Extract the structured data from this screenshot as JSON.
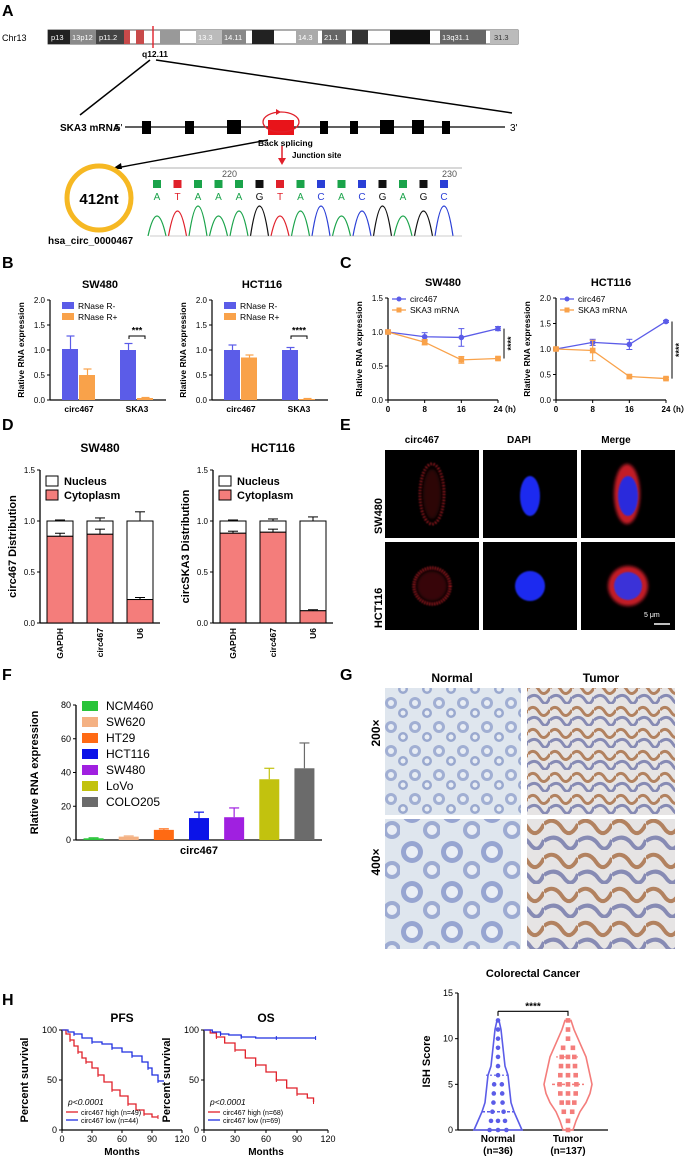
{
  "panels": {
    "A": "A",
    "B": "B",
    "C": "C",
    "D": "D",
    "E": "E",
    "F": "F",
    "G": "G",
    "H": "H"
  },
  "A": {
    "chr": "Chr13",
    "bands": [
      "p13",
      "13p12",
      "p11.2",
      "13.3",
      "14.11",
      "14.3",
      "21.1",
      "13q31.1",
      "31.3"
    ],
    "locus": "q12.11",
    "mrna_label": "SKA3 mRNA",
    "five": "5'",
    "three": "3'",
    "back_splicing": "Back splicing",
    "junction": "Junction site",
    "circle_size": "412nt",
    "circ_name": "hsa_circ_0000467",
    "seq": [
      "A",
      "T",
      "A",
      "A",
      "A",
      "G",
      "T",
      "A",
      "C",
      "A",
      "C",
      "G",
      "A",
      "G",
      "C"
    ],
    "seq_colors": {
      "A": "#1aa34a",
      "T": "#e0202a",
      "G": "#111111",
      "C": "#2a3fd6"
    },
    "pos1": "220",
    "pos2": "230"
  },
  "B": {
    "ylabel": "Rlative RNA expression",
    "legend": [
      "RNase R-",
      "RNase R+"
    ],
    "colors": [
      "#5b5ce8",
      "#f9a24a"
    ],
    "charts": [
      {
        "title": "SW480",
        "sig": "***",
        "categories": [
          "circ467",
          "SKA3"
        ],
        "series": [
          {
            "name": "RNase R-",
            "values": [
              1.02,
              1.0
            ],
            "err": [
              0.26,
              0.13
            ]
          },
          {
            "name": "RNase R+",
            "values": [
              0.5,
              0.04
            ],
            "err": [
              0.12,
              0.01
            ]
          }
        ],
        "ylim": [
          0,
          2.0
        ],
        "yticks": [
          "0.0",
          "0.5",
          "1.0",
          "1.5",
          "2.0"
        ]
      },
      {
        "title": "HCT116",
        "sig": "****",
        "categories": [
          "circ467",
          "SKA3"
        ],
        "series": [
          {
            "name": "RNase R-",
            "values": [
              1.0,
              1.0
            ],
            "err": [
              0.1,
              0.05
            ]
          },
          {
            "name": "RNase R+",
            "values": [
              0.85,
              0.02
            ],
            "err": [
              0.05,
              0.01
            ]
          }
        ],
        "ylim": [
          0,
          2.0
        ],
        "yticks": [
          "0.0",
          "0.5",
          "1.0",
          "1.5",
          "2.0"
        ]
      }
    ]
  },
  "C": {
    "ylabel": "Rlative RNA expression",
    "legend": [
      "circ467",
      "SKA3 mRNA"
    ],
    "colors": [
      "#5b5ce8",
      "#f9a24a"
    ],
    "x": [
      0,
      8,
      16,
      24
    ],
    "xticks": [
      "0",
      "8",
      "16",
      "24"
    ],
    "xunit": "（h）",
    "charts": [
      {
        "title": "SW480",
        "sig": "****",
        "series": [
          {
            "name": "circ467",
            "values": [
              1.0,
              0.93,
              0.92,
              1.05
            ],
            "err": [
              0.03,
              0.06,
              0.13,
              0.03
            ]
          },
          {
            "name": "SKA3 mRNA",
            "values": [
              1.0,
              0.85,
              0.59,
              0.61
            ],
            "err": [
              0.02,
              0.04,
              0.05,
              0.02
            ]
          }
        ],
        "ylim": [
          0,
          1.5
        ],
        "yticks": [
          "0.0",
          "0.5",
          "1.0",
          "1.5"
        ]
      },
      {
        "title": "HCT116",
        "sig": "****",
        "series": [
          {
            "name": "circ467",
            "values": [
              1.0,
              1.13,
              1.09,
              1.54
            ],
            "err": [
              0.03,
              0.06,
              0.1,
              0.02
            ]
          },
          {
            "name": "SKA3 mRNA",
            "values": [
              1.0,
              0.97,
              0.46,
              0.42
            ],
            "err": [
              0.02,
              0.2,
              0.03,
              0.02
            ]
          }
        ],
        "ylim": [
          0,
          2.0
        ],
        "yticks": [
          "0.0",
          "0.5",
          "1.0",
          "1.5",
          "2.0"
        ]
      }
    ]
  },
  "D": {
    "legend": [
      "Nucleus",
      "Cytoplasm"
    ],
    "colors": [
      "#ffffff",
      "#f47d7b"
    ],
    "categories": [
      "GAPDH",
      "circ467",
      "U6"
    ],
    "yticks": [
      "0.0",
      "0.5",
      "1.0",
      "1.5"
    ],
    "charts": [
      {
        "title": "SW480",
        "ylabel": "circ467 Distribution",
        "cyto": [
          0.85,
          0.87,
          0.23
        ],
        "err_total": [
          0.01,
          0.03,
          0.09
        ],
        "err_cyto": [
          0.03,
          0.05,
          0.02
        ]
      },
      {
        "title": "HCT116",
        "ylabel": "circSKA3 Distribution",
        "cyto": [
          0.88,
          0.89,
          0.12
        ],
        "err_total": [
          0.01,
          0.02,
          0.04
        ],
        "err_cyto": [
          0.02,
          0.03,
          0.01
        ]
      }
    ]
  },
  "E": {
    "cols": [
      "circ467",
      "DAPI",
      "Merge"
    ],
    "rows": [
      "SW480",
      "HCT116"
    ],
    "scale": "5 μm"
  },
  "F": {
    "ylabel": "Rlative RNA expression",
    "xlabel": "circ467",
    "categories": [
      "NCM460",
      "SW620",
      "HT29",
      "HCT116",
      "SW480",
      "LoVo",
      "COLO205"
    ],
    "colors": [
      "#29c43a",
      "#f4b183",
      "#ff6a13",
      "#0b13e8",
      "#a020e0",
      "#c2c20e",
      "#6b6b6b"
    ],
    "values": [
      1.0,
      2.0,
      6.0,
      13.0,
      13.5,
      36.0,
      42.5
    ],
    "err": [
      0.3,
      0.4,
      0.6,
      3.5,
      5.5,
      6.5,
      15.0
    ],
    "ylim": [
      0,
      80
    ],
    "yticks": [
      "0",
      "20",
      "40",
      "60",
      "80"
    ]
  },
  "G": {
    "cols": [
      "Normal",
      "Tumor"
    ],
    "rows": [
      "200×",
      "400×"
    ],
    "title": "Colorectal Cancer",
    "ylabel": "ISH Score",
    "groups": [
      "Normal",
      "Tumor"
    ],
    "ns": [
      "(n=36)",
      "(n=137)"
    ],
    "sig": "****",
    "colors": [
      "#5b5ce8",
      "#f47d7b"
    ],
    "yticks": [
      "0",
      "5",
      "10",
      "15"
    ],
    "ylim": [
      0,
      15
    ],
    "medians": [
      2.0,
      5.0
    ],
    "q1": [
      0.0,
      3.0
    ],
    "q3": [
      6.0,
      8.0
    ],
    "max": [
      12.0,
      12.0
    ]
  },
  "H": {
    "xlabel": "Months",
    "ylabel": "Percent survival",
    "xticks": [
      "0",
      "30",
      "60",
      "90",
      "120"
    ],
    "yticks": [
      "0",
      "50",
      "100"
    ],
    "colors": [
      "#e0202a",
      "#1f2fe0"
    ],
    "charts": [
      {
        "title": "PFS",
        "p": "p<0.0001",
        "legend": [
          "circ467 high (n=49)",
          "circ467 low (n=44)"
        ]
      },
      {
        "title": "OS",
        "p": "p<0.0001",
        "legend": [
          "circ467 high (n=68)",
          "circ467 low (n=69)"
        ]
      }
    ]
  }
}
